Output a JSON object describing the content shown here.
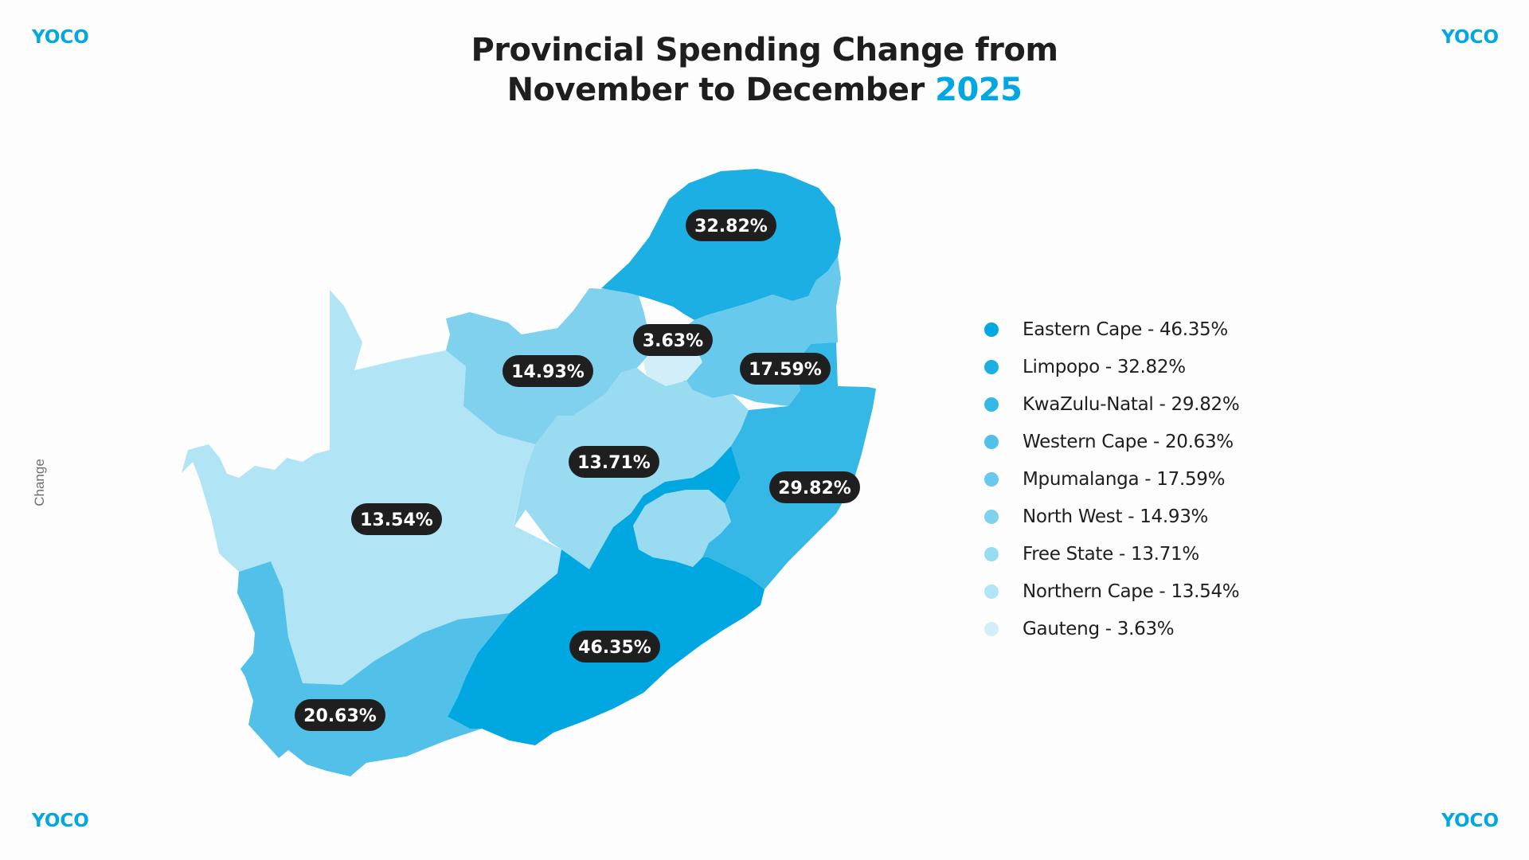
{
  "brand": {
    "logo": "YOCO",
    "color": "#00a7e1"
  },
  "title": {
    "line1": "Provincial Spending Change from",
    "line2_prefix": "November to December ",
    "line2_accent": "2025"
  },
  "side_label": "Change",
  "regions": {
    "eastern_cape": {
      "label": "46.35%",
      "color": "#00a7e1"
    },
    "limpopo": {
      "label": "32.82%",
      "color": "#1bafe4"
    },
    "kwazulu_natal": {
      "label": "29.82%",
      "color": "#36b8e6"
    },
    "western_cape": {
      "label": "20.63%",
      "color": "#52c1e9"
    },
    "mpumalanga": {
      "label": "17.59%",
      "color": "#67c9ec"
    },
    "north_west": {
      "label": "14.93%",
      "color": "#7fd1ee"
    },
    "free_state": {
      "label": "13.71%",
      "color": "#99dbf1"
    },
    "northern_cape": {
      "label": "13.54%",
      "color": "#b1e4f5"
    },
    "gauteng": {
      "label": "3.63%",
      "color": "#d2eef9"
    }
  },
  "legend": [
    {
      "label": "Eastern Cape - 46.35%",
      "color": "#00a7e1"
    },
    {
      "label": "Limpopo - 32.82%",
      "color": "#1bafe4"
    },
    {
      "label": "KwaZulu-Natal - 29.82%",
      "color": "#36b8e6"
    },
    {
      "label": "Western Cape - 20.63%",
      "color": "#52c1e9"
    },
    {
      "label": "Mpumalanga - 17.59%",
      "color": "#67c9ec"
    },
    {
      "label": "North West - 14.93%",
      "color": "#7fd1ee"
    },
    {
      "label": "Free State - 13.71%",
      "color": "#99dbf1"
    },
    {
      "label": "Northern Cape - 13.54%",
      "color": "#b1e4f5"
    },
    {
      "label": "Gauteng - 3.63%",
      "color": "#d2eef9"
    }
  ]
}
